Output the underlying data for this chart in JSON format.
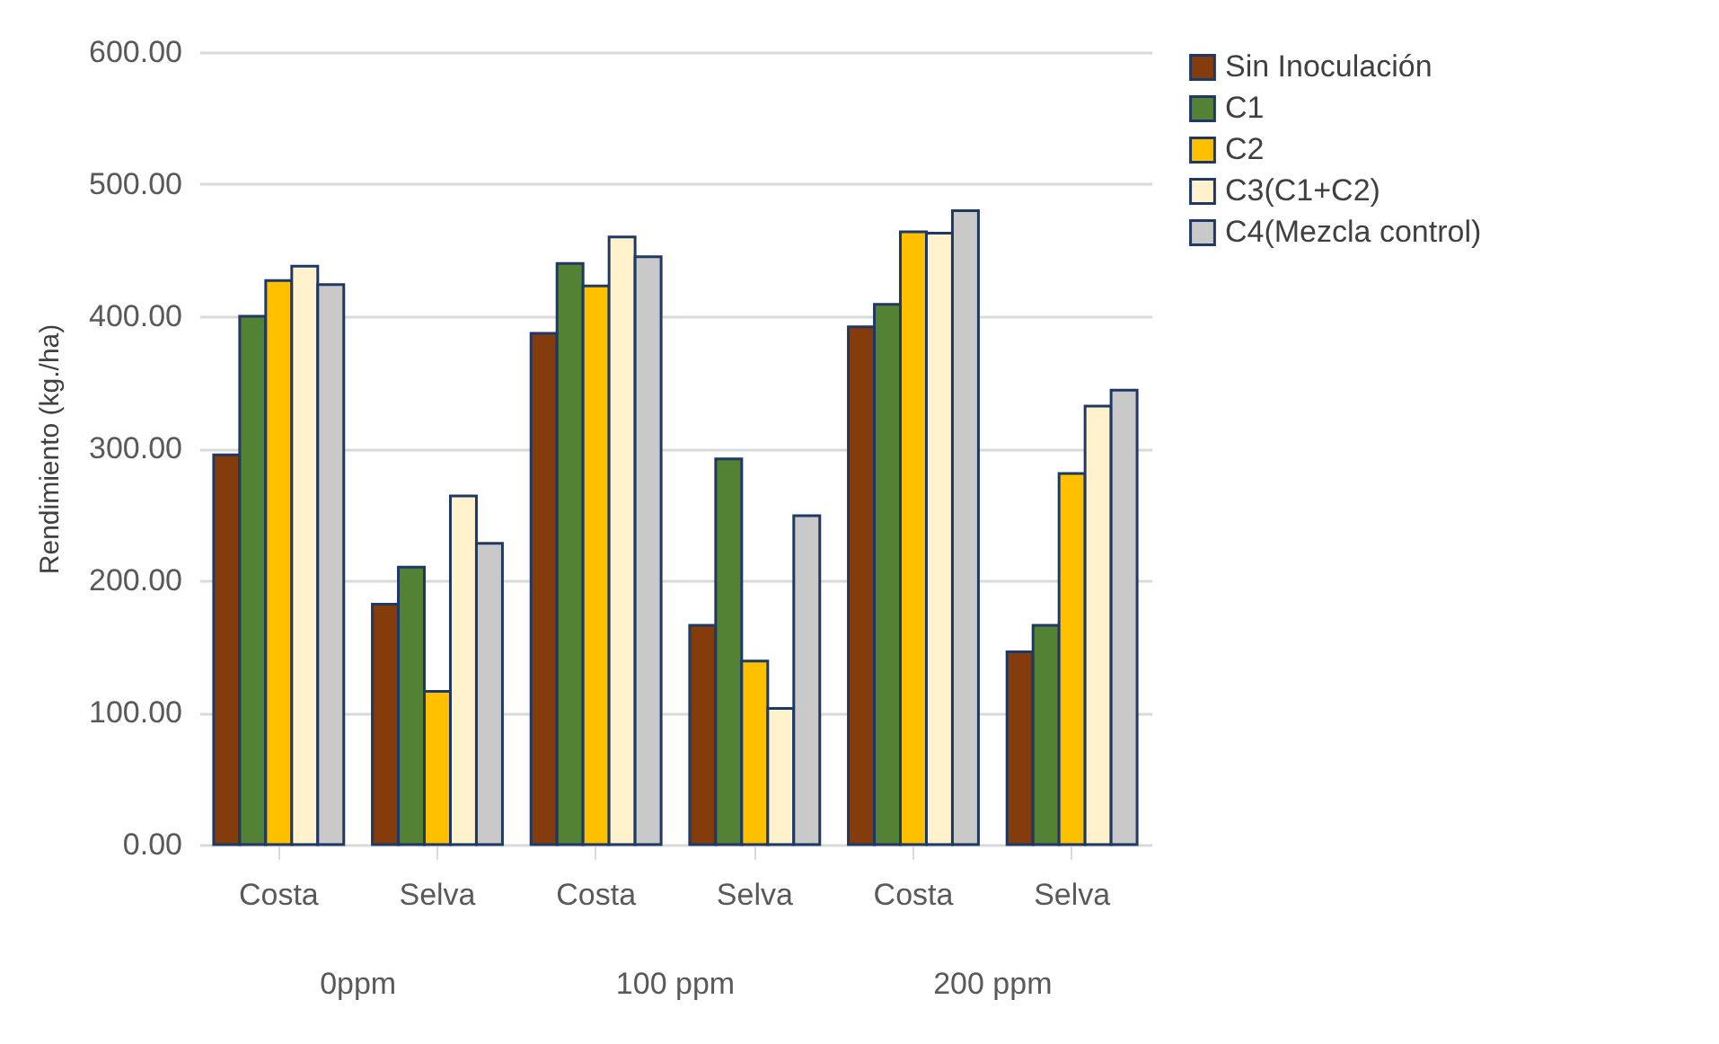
{
  "chart_data": {
    "type": "bar",
    "ylabel": "Rendimiento (kg./ha)",
    "categories": [
      "Costa",
      "Selva",
      "Costa",
      "Selva",
      "Costa",
      "Selva"
    ],
    "annotations": [
      "0ppm",
      "100 ppm",
      "200 ppm"
    ],
    "series": [
      {
        "name": "Sin Inoculación",
        "color": "#843c0c",
        "values": [
          295,
          182,
          387,
          166,
          392,
          146
        ]
      },
      {
        "name": "C1",
        "color": "#548235",
        "values": [
          400,
          210,
          440,
          292,
          409,
          166
        ]
      },
      {
        "name": "C2",
        "color": "#ffc000",
        "values": [
          427,
          116,
          423,
          139,
          464,
          281
        ]
      },
      {
        "name": "C3(C1+C2)",
        "color": "#fff2cc",
        "values": [
          438,
          264,
          460,
          103,
          463,
          332
        ]
      },
      {
        "name": "C4(Mezcla control)",
        "color": "#c9c9c9",
        "values": [
          424,
          228,
          445,
          249,
          480,
          344
        ]
      }
    ],
    "ylim": [
      0,
      600
    ],
    "yticks": [
      {
        "value": 0,
        "label": "0.00"
      },
      {
        "value": 100,
        "label": "100.00"
      },
      {
        "value": 200,
        "label": "200.00"
      },
      {
        "value": 300,
        "label": "300.00"
      },
      {
        "value": 400,
        "label": "400.00"
      },
      {
        "value": 500,
        "label": "500.00"
      },
      {
        "value": 600,
        "label": "600.00"
      }
    ],
    "grid": "y",
    "legend": "right"
  }
}
